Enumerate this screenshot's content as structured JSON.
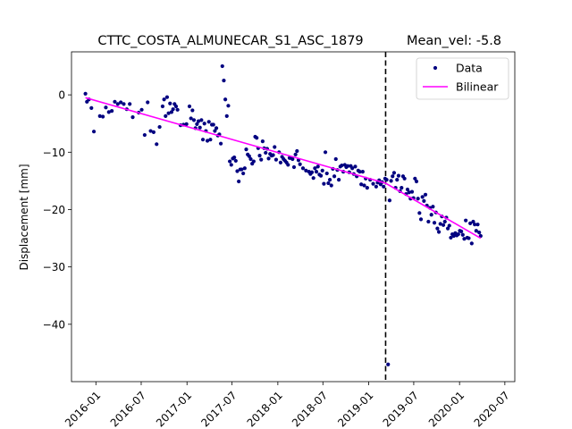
{
  "chart_data": {
    "type": "scatter",
    "title": "CTTC_COSTA_ALMUNECAR_S1_ASC_1879",
    "title_right": "Mean_vel: -5.8",
    "ylabel": "Displacement [mm]",
    "xlabel": "",
    "xlim": [
      "2015-09-25",
      "2020-08-10"
    ],
    "ylim": [
      -50,
      7.5
    ],
    "yticks": [
      0,
      -10,
      -20,
      -30,
      -40
    ],
    "xticks": [
      {
        "date": "2016-01-01",
        "label": "2016-01"
      },
      {
        "date": "2016-07-01",
        "label": "2016-07"
      },
      {
        "date": "2017-01-01",
        "label": "2017-01"
      },
      {
        "date": "2017-07-01",
        "label": "2017-07"
      },
      {
        "date": "2018-01-01",
        "label": "2018-01"
      },
      {
        "date": "2018-07-01",
        "label": "2018-07"
      },
      {
        "date": "2019-01-01",
        "label": "2019-01"
      },
      {
        "date": "2019-07-01",
        "label": "2019-07"
      },
      {
        "date": "2020-01-01",
        "label": "2020-01"
      },
      {
        "date": "2020-07-01",
        "label": "2020-07"
      }
    ],
    "breakpoint_date": "2019-03-10",
    "legend_position": "top-right",
    "colors": {
      "data": "#000080",
      "bilinear": "#ff00ff",
      "breakpoint": "#000000"
    },
    "series": [
      {
        "name": "Data",
        "kind": "points",
        "points": [
          [
            "2015-11-20",
            0.2
          ],
          [
            "2015-11-26",
            -1.2
          ],
          [
            "2015-12-04",
            -0.8
          ],
          [
            "2015-12-14",
            -2.3
          ],
          [
            "2015-12-24",
            -6.4
          ],
          [
            "2016-01-17",
            -3.7
          ],
          [
            "2016-01-29",
            -3.8
          ],
          [
            "2016-02-10",
            -2.2
          ],
          [
            "2016-02-22",
            -3.0
          ],
          [
            "2016-03-05",
            -2.8
          ],
          [
            "2016-03-17",
            -1.2
          ],
          [
            "2016-03-29",
            -1.6
          ],
          [
            "2016-04-10",
            -1.3
          ],
          [
            "2016-04-22",
            -1.6
          ],
          [
            "2016-05-04",
            -2.5
          ],
          [
            "2016-05-16",
            -1.6
          ],
          [
            "2016-05-28",
            -3.9
          ],
          [
            "2016-06-21",
            -3.1
          ],
          [
            "2016-07-03",
            -2.6
          ],
          [
            "2016-07-15",
            -7.0
          ],
          [
            "2016-07-27",
            -1.3
          ],
          [
            "2016-08-08",
            -6.3
          ],
          [
            "2016-08-20",
            -6.5
          ],
          [
            "2016-09-01",
            -8.6
          ],
          [
            "2016-09-13",
            -5.6
          ],
          [
            "2016-09-25",
            -2.0
          ],
          [
            "2016-10-01",
            -0.8
          ],
          [
            "2016-10-07",
            -3.7
          ],
          [
            "2016-10-13",
            -0.4
          ],
          [
            "2016-10-19",
            -3.2
          ],
          [
            "2016-10-25",
            -1.5
          ],
          [
            "2016-10-31",
            -3.0
          ],
          [
            "2016-11-06",
            -2.5
          ],
          [
            "2016-11-12",
            -1.6
          ],
          [
            "2016-11-18",
            -2.0
          ],
          [
            "2016-11-24",
            -2.6
          ],
          [
            "2016-12-06",
            -5.3
          ],
          [
            "2016-12-18",
            -5.2
          ],
          [
            "2016-12-30",
            -5.1
          ],
          [
            "2017-01-11",
            -2.0
          ],
          [
            "2017-01-17",
            -4.1
          ],
          [
            "2017-01-23",
            -2.7
          ],
          [
            "2017-01-29",
            -4.4
          ],
          [
            "2017-02-04",
            -5.8
          ],
          [
            "2017-02-10",
            -5.1
          ],
          [
            "2017-02-16",
            -4.6
          ],
          [
            "2017-02-22",
            -5.7
          ],
          [
            "2017-02-28",
            -4.4
          ],
          [
            "2017-03-06",
            -7.8
          ],
          [
            "2017-03-12",
            -5.0
          ],
          [
            "2017-03-18",
            -6.3
          ],
          [
            "2017-03-24",
            -8.0
          ],
          [
            "2017-03-30",
            -4.7
          ],
          [
            "2017-04-05",
            -7.8
          ],
          [
            "2017-04-11",
            -5.2
          ],
          [
            "2017-04-17",
            -5.2
          ],
          [
            "2017-04-23",
            -6.3
          ],
          [
            "2017-04-29",
            -5.8
          ],
          [
            "2017-05-05",
            -7.1
          ],
          [
            "2017-05-11",
            -6.9
          ],
          [
            "2017-05-17",
            -8.5
          ],
          [
            "2017-05-23",
            5.0
          ],
          [
            "2017-05-29",
            2.5
          ],
          [
            "2017-06-04",
            -0.8
          ],
          [
            "2017-06-10",
            -3.7
          ],
          [
            "2017-06-16",
            -1.9
          ],
          [
            "2017-06-22",
            -11.6
          ],
          [
            "2017-06-28",
            -12.2
          ],
          [
            "2017-07-04",
            -11.1
          ],
          [
            "2017-07-10",
            -10.9
          ],
          [
            "2017-07-16",
            -11.5
          ],
          [
            "2017-07-22",
            -13.3
          ],
          [
            "2017-07-28",
            -15.1
          ],
          [
            "2017-08-03",
            -13.0
          ],
          [
            "2017-08-09",
            -13.0
          ],
          [
            "2017-08-15",
            -13.7
          ],
          [
            "2017-08-21",
            -12.8
          ],
          [
            "2017-08-27",
            -9.5
          ],
          [
            "2017-09-02",
            -10.4
          ],
          [
            "2017-09-08",
            -10.7
          ],
          [
            "2017-09-14",
            -11.2
          ],
          [
            "2017-09-20",
            -12.0
          ],
          [
            "2017-09-26",
            -11.6
          ],
          [
            "2017-10-02",
            -7.3
          ],
          [
            "2017-10-08",
            -7.5
          ],
          [
            "2017-10-14",
            -9.3
          ],
          [
            "2017-10-20",
            -10.6
          ],
          [
            "2017-10-26",
            -11.3
          ],
          [
            "2017-11-01",
            -8.1
          ],
          [
            "2017-11-07",
            -9.3
          ],
          [
            "2017-11-13",
            -10.1
          ],
          [
            "2017-11-19",
            -9.4
          ],
          [
            "2017-11-25",
            -11.1
          ],
          [
            "2017-12-01",
            -10.3
          ],
          [
            "2017-12-07",
            -10.6
          ],
          [
            "2017-12-13",
            -10.5
          ],
          [
            "2017-12-19",
            -9.1
          ],
          [
            "2017-12-25",
            -11.3
          ],
          [
            "2018-01-06",
            -10.0
          ],
          [
            "2018-01-12",
            -11.8
          ],
          [
            "2018-01-18",
            -10.8
          ],
          [
            "2018-01-24",
            -11.2
          ],
          [
            "2018-01-30",
            -11.5
          ],
          [
            "2018-02-05",
            -11.8
          ],
          [
            "2018-02-11",
            -12.2
          ],
          [
            "2018-02-17",
            -11.0
          ],
          [
            "2018-02-23",
            -11.0
          ],
          [
            "2018-03-01",
            -11.2
          ],
          [
            "2018-03-07",
            -12.6
          ],
          [
            "2018-03-13",
            -10.4
          ],
          [
            "2018-03-19",
            -9.8
          ],
          [
            "2018-03-25",
            -11.4
          ],
          [
            "2018-03-31",
            -12.1
          ],
          [
            "2018-04-12",
            -12.8
          ],
          [
            "2018-04-24",
            -13.2
          ],
          [
            "2018-05-06",
            -13.4
          ],
          [
            "2018-05-12",
            -13.8
          ],
          [
            "2018-05-18",
            -13.5
          ],
          [
            "2018-05-24",
            -14.5
          ],
          [
            "2018-05-30",
            -12.8
          ],
          [
            "2018-06-05",
            -13.4
          ],
          [
            "2018-06-11",
            -12.5
          ],
          [
            "2018-06-17",
            -13.9
          ],
          [
            "2018-06-23",
            -14.1
          ],
          [
            "2018-06-29",
            -13.2
          ],
          [
            "2018-07-05",
            -15.5
          ],
          [
            "2018-07-11",
            -10.0
          ],
          [
            "2018-07-17",
            -13.7
          ],
          [
            "2018-07-23",
            -15.4
          ],
          [
            "2018-07-29",
            -14.8
          ],
          [
            "2018-08-04",
            -15.8
          ],
          [
            "2018-08-10",
            -12.9
          ],
          [
            "2018-08-16",
            -14.2
          ],
          [
            "2018-08-22",
            -11.2
          ],
          [
            "2018-08-28",
            -13.1
          ],
          [
            "2018-09-03",
            -14.8
          ],
          [
            "2018-09-09",
            -12.5
          ],
          [
            "2018-09-15",
            -12.3
          ],
          [
            "2018-09-21",
            -13.4
          ],
          [
            "2018-09-27",
            -12.2
          ],
          [
            "2018-10-03",
            -12.6
          ],
          [
            "2018-10-09",
            -12.4
          ],
          [
            "2018-10-15",
            -13.5
          ],
          [
            "2018-10-21",
            -12.4
          ],
          [
            "2018-10-27",
            -12.8
          ],
          [
            "2018-11-02",
            -13.8
          ],
          [
            "2018-11-08",
            -12.5
          ],
          [
            "2018-11-14",
            -14.2
          ],
          [
            "2018-11-20",
            -13.2
          ],
          [
            "2018-11-26",
            -13.4
          ],
          [
            "2018-12-02",
            -15.6
          ],
          [
            "2018-12-08",
            -13.4
          ],
          [
            "2018-12-14",
            -15.8
          ],
          [
            "2018-12-20",
            -14.6
          ],
          [
            "2018-12-26",
            -16.2
          ],
          [
            "2019-01-07",
            -14.8
          ],
          [
            "2019-01-19",
            -15.5
          ],
          [
            "2019-01-31",
            -16.0
          ],
          [
            "2019-02-06",
            -15.3
          ],
          [
            "2019-02-12",
            -14.9
          ],
          [
            "2019-02-18",
            -15.6
          ],
          [
            "2019-02-24",
            -15.2
          ],
          [
            "2019-03-02",
            -16.0
          ],
          [
            "2019-03-08",
            -14.6
          ],
          [
            "2019-03-14",
            -14.8
          ],
          [
            "2019-03-20",
            -47.0
          ],
          [
            "2019-03-26",
            -18.4
          ],
          [
            "2019-04-01",
            -15.0
          ],
          [
            "2019-04-07",
            -14.2
          ],
          [
            "2019-04-13",
            -13.6
          ],
          [
            "2019-04-19",
            -16.2
          ],
          [
            "2019-04-25",
            -14.8
          ],
          [
            "2019-05-01",
            -14.1
          ],
          [
            "2019-05-07",
            -16.8
          ],
          [
            "2019-05-13",
            -16.2
          ],
          [
            "2019-05-19",
            -14.2
          ],
          [
            "2019-05-25",
            -14.6
          ],
          [
            "2019-05-31",
            -17.3
          ],
          [
            "2019-06-06",
            -16.5
          ],
          [
            "2019-06-12",
            -17.0
          ],
          [
            "2019-06-18",
            -18.1
          ],
          [
            "2019-06-24",
            -16.9
          ],
          [
            "2019-06-30",
            -18.0
          ],
          [
            "2019-07-06",
            -14.6
          ],
          [
            "2019-07-12",
            -15.1
          ],
          [
            "2019-07-18",
            -18.1
          ],
          [
            "2019-07-24",
            -20.6
          ],
          [
            "2019-07-30",
            -21.7
          ],
          [
            "2019-08-05",
            -17.8
          ],
          [
            "2019-08-11",
            -18.5
          ],
          [
            "2019-08-17",
            -17.4
          ],
          [
            "2019-08-23",
            -19.3
          ],
          [
            "2019-08-29",
            -22.1
          ],
          [
            "2019-09-04",
            -19.7
          ],
          [
            "2019-09-10",
            -20.9
          ],
          [
            "2019-09-16",
            -19.5
          ],
          [
            "2019-09-22",
            -22.3
          ],
          [
            "2019-09-28",
            -20.5
          ],
          [
            "2019-10-04",
            -23.3
          ],
          [
            "2019-10-10",
            -23.9
          ],
          [
            "2019-10-16",
            -22.5
          ],
          [
            "2019-10-22",
            -21.2
          ],
          [
            "2019-10-28",
            -22.7
          ],
          [
            "2019-11-03",
            -22.1
          ],
          [
            "2019-11-09",
            -21.4
          ],
          [
            "2019-11-15",
            -23.3
          ],
          [
            "2019-11-21",
            -22.8
          ],
          [
            "2019-11-27",
            -24.9
          ],
          [
            "2019-12-03",
            -24.3
          ],
          [
            "2019-12-09",
            -24.6
          ],
          [
            "2019-12-15",
            -24.1
          ],
          [
            "2019-12-21",
            -24.5
          ],
          [
            "2019-12-27",
            -24.3
          ],
          [
            "2020-01-02",
            -23.7
          ],
          [
            "2020-01-08",
            -23.8
          ],
          [
            "2020-01-14",
            -24.4
          ],
          [
            "2020-01-20",
            -25.1
          ],
          [
            "2020-01-26",
            -21.9
          ],
          [
            "2020-02-01",
            -24.9
          ],
          [
            "2020-02-07",
            -25.0
          ],
          [
            "2020-02-13",
            -22.4
          ],
          [
            "2020-02-19",
            -25.9
          ],
          [
            "2020-02-25",
            -22.1
          ],
          [
            "2020-03-02",
            -22.6
          ],
          [
            "2020-03-08",
            -23.7
          ],
          [
            "2020-03-14",
            -22.6
          ],
          [
            "2020-03-20",
            -24.0
          ],
          [
            "2020-03-26",
            -24.6
          ]
        ]
      },
      {
        "name": "Bilinear",
        "kind": "line",
        "points": [
          [
            "2015-11-20",
            -0.5
          ],
          [
            "2019-03-10",
            -15.4
          ],
          [
            "2020-03-26",
            -25.0
          ]
        ]
      }
    ]
  }
}
